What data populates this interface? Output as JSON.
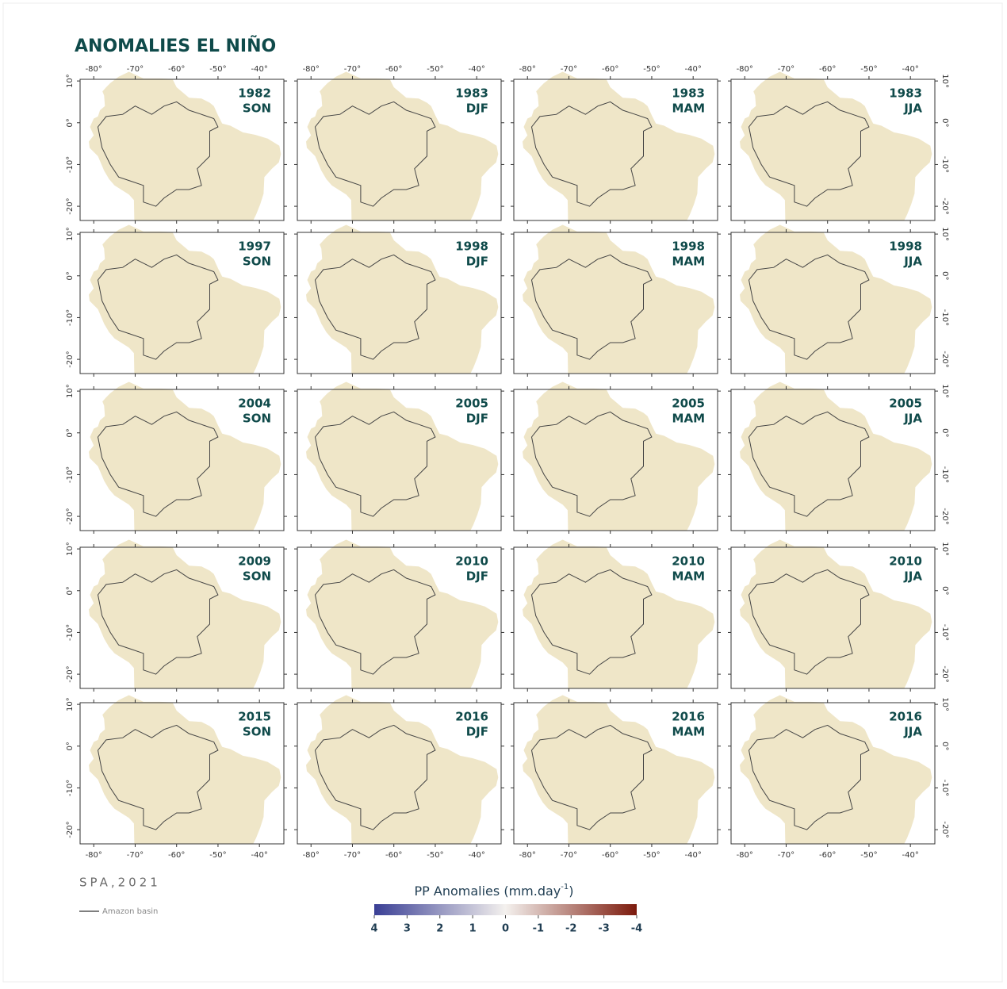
{
  "title": "ANOMALIES EL NIÑO",
  "panels": [
    {
      "year": "1982",
      "season": "SON"
    },
    {
      "year": "1983",
      "season": "DJF"
    },
    {
      "year": "1983",
      "season": "MAM"
    },
    {
      "year": "1983",
      "season": "JJA"
    },
    {
      "year": "1997",
      "season": "SON"
    },
    {
      "year": "1998",
      "season": "DJF"
    },
    {
      "year": "1998",
      "season": "MAM"
    },
    {
      "year": "1998",
      "season": "JJA"
    },
    {
      "year": "2004",
      "season": "SON"
    },
    {
      "year": "2005",
      "season": "DJF"
    },
    {
      "year": "2005",
      "season": "MAM"
    },
    {
      "year": "2005",
      "season": "JJA"
    },
    {
      "year": "2009",
      "season": "SON"
    },
    {
      "year": "2010",
      "season": "DJF"
    },
    {
      "year": "2010",
      "season": "MAM"
    },
    {
      "year": "2010",
      "season": "JJA"
    },
    {
      "year": "2015",
      "season": "SON"
    },
    {
      "year": "2016",
      "season": "DJF"
    },
    {
      "year": "2016",
      "season": "MAM"
    },
    {
      "year": "2016",
      "season": "JJA"
    }
  ],
  "lon_ticks": [
    {
      "value": -80,
      "label": "-80°"
    },
    {
      "value": -70,
      "label": "-70°"
    },
    {
      "value": -60,
      "label": "-60°"
    },
    {
      "value": -50,
      "label": "-50°"
    },
    {
      "value": -40,
      "label": "-40°"
    }
  ],
  "lat_ticks": [
    {
      "value": 10,
      "label": "10°"
    },
    {
      "value": 0,
      "label": "0°"
    },
    {
      "value": -10,
      "label": "-10°"
    },
    {
      "value": -20,
      "label": "-20°"
    }
  ],
  "colorbar": {
    "label": "PP Anomalies (mm.day",
    "label_superscript": "-1",
    "label_end": ")",
    "lim": [
      4,
      -4
    ],
    "ticks": [
      4,
      3,
      2,
      1,
      0,
      -1,
      -2,
      -3,
      -4
    ],
    "colors": [
      "#3a3f95",
      "#f4f1ee",
      "#7c1a0c"
    ]
  },
  "source": "SPA,2021",
  "legend": {
    "label": "Amazon basin"
  }
}
